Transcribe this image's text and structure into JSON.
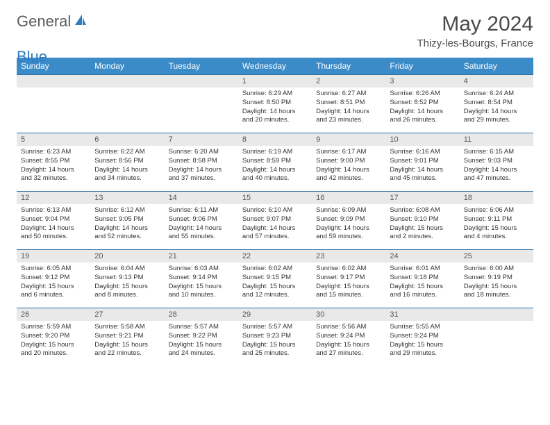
{
  "brand": {
    "part1": "General",
    "part2": "Blue"
  },
  "title": "May 2024",
  "location": "Thizy-les-Bourgs, France",
  "colors": {
    "header_bg": "#3b8bc9",
    "header_text": "#ffffff",
    "daynum_bg": "#e9e9e9",
    "row_border": "#2f6fa3",
    "brand_gray": "#5a5a5a",
    "brand_blue": "#2f7bbf"
  },
  "daysOfWeek": [
    "Sunday",
    "Monday",
    "Tuesday",
    "Wednesday",
    "Thursday",
    "Friday",
    "Saturday"
  ],
  "weeks": [
    [
      null,
      null,
      null,
      {
        "n": "1",
        "sr": "6:29 AM",
        "ss": "8:50 PM",
        "dl": "14 hours and 20 minutes."
      },
      {
        "n": "2",
        "sr": "6:27 AM",
        "ss": "8:51 PM",
        "dl": "14 hours and 23 minutes."
      },
      {
        "n": "3",
        "sr": "6:26 AM",
        "ss": "8:52 PM",
        "dl": "14 hours and 26 minutes."
      },
      {
        "n": "4",
        "sr": "6:24 AM",
        "ss": "8:54 PM",
        "dl": "14 hours and 29 minutes."
      }
    ],
    [
      {
        "n": "5",
        "sr": "6:23 AM",
        "ss": "8:55 PM",
        "dl": "14 hours and 32 minutes."
      },
      {
        "n": "6",
        "sr": "6:22 AM",
        "ss": "8:56 PM",
        "dl": "14 hours and 34 minutes."
      },
      {
        "n": "7",
        "sr": "6:20 AM",
        "ss": "8:58 PM",
        "dl": "14 hours and 37 minutes."
      },
      {
        "n": "8",
        "sr": "6:19 AM",
        "ss": "8:59 PM",
        "dl": "14 hours and 40 minutes."
      },
      {
        "n": "9",
        "sr": "6:17 AM",
        "ss": "9:00 PM",
        "dl": "14 hours and 42 minutes."
      },
      {
        "n": "10",
        "sr": "6:16 AM",
        "ss": "9:01 PM",
        "dl": "14 hours and 45 minutes."
      },
      {
        "n": "11",
        "sr": "6:15 AM",
        "ss": "9:03 PM",
        "dl": "14 hours and 47 minutes."
      }
    ],
    [
      {
        "n": "12",
        "sr": "6:13 AM",
        "ss": "9:04 PM",
        "dl": "14 hours and 50 minutes."
      },
      {
        "n": "13",
        "sr": "6:12 AM",
        "ss": "9:05 PM",
        "dl": "14 hours and 52 minutes."
      },
      {
        "n": "14",
        "sr": "6:11 AM",
        "ss": "9:06 PM",
        "dl": "14 hours and 55 minutes."
      },
      {
        "n": "15",
        "sr": "6:10 AM",
        "ss": "9:07 PM",
        "dl": "14 hours and 57 minutes."
      },
      {
        "n": "16",
        "sr": "6:09 AM",
        "ss": "9:09 PM",
        "dl": "14 hours and 59 minutes."
      },
      {
        "n": "17",
        "sr": "6:08 AM",
        "ss": "9:10 PM",
        "dl": "15 hours and 2 minutes."
      },
      {
        "n": "18",
        "sr": "6:06 AM",
        "ss": "9:11 PM",
        "dl": "15 hours and 4 minutes."
      }
    ],
    [
      {
        "n": "19",
        "sr": "6:05 AM",
        "ss": "9:12 PM",
        "dl": "15 hours and 6 minutes."
      },
      {
        "n": "20",
        "sr": "6:04 AM",
        "ss": "9:13 PM",
        "dl": "15 hours and 8 minutes."
      },
      {
        "n": "21",
        "sr": "6:03 AM",
        "ss": "9:14 PM",
        "dl": "15 hours and 10 minutes."
      },
      {
        "n": "22",
        "sr": "6:02 AM",
        "ss": "9:15 PM",
        "dl": "15 hours and 12 minutes."
      },
      {
        "n": "23",
        "sr": "6:02 AM",
        "ss": "9:17 PM",
        "dl": "15 hours and 15 minutes."
      },
      {
        "n": "24",
        "sr": "6:01 AM",
        "ss": "9:18 PM",
        "dl": "15 hours and 16 minutes."
      },
      {
        "n": "25",
        "sr": "6:00 AM",
        "ss": "9:19 PM",
        "dl": "15 hours and 18 minutes."
      }
    ],
    [
      {
        "n": "26",
        "sr": "5:59 AM",
        "ss": "9:20 PM",
        "dl": "15 hours and 20 minutes."
      },
      {
        "n": "27",
        "sr": "5:58 AM",
        "ss": "9:21 PM",
        "dl": "15 hours and 22 minutes."
      },
      {
        "n": "28",
        "sr": "5:57 AM",
        "ss": "9:22 PM",
        "dl": "15 hours and 24 minutes."
      },
      {
        "n": "29",
        "sr": "5:57 AM",
        "ss": "9:23 PM",
        "dl": "15 hours and 25 minutes."
      },
      {
        "n": "30",
        "sr": "5:56 AM",
        "ss": "9:24 PM",
        "dl": "15 hours and 27 minutes."
      },
      {
        "n": "31",
        "sr": "5:55 AM",
        "ss": "9:24 PM",
        "dl": "15 hours and 29 minutes."
      },
      null
    ]
  ],
  "labels": {
    "sunrise": "Sunrise: ",
    "sunset": "Sunset: ",
    "daylight": "Daylight: "
  }
}
